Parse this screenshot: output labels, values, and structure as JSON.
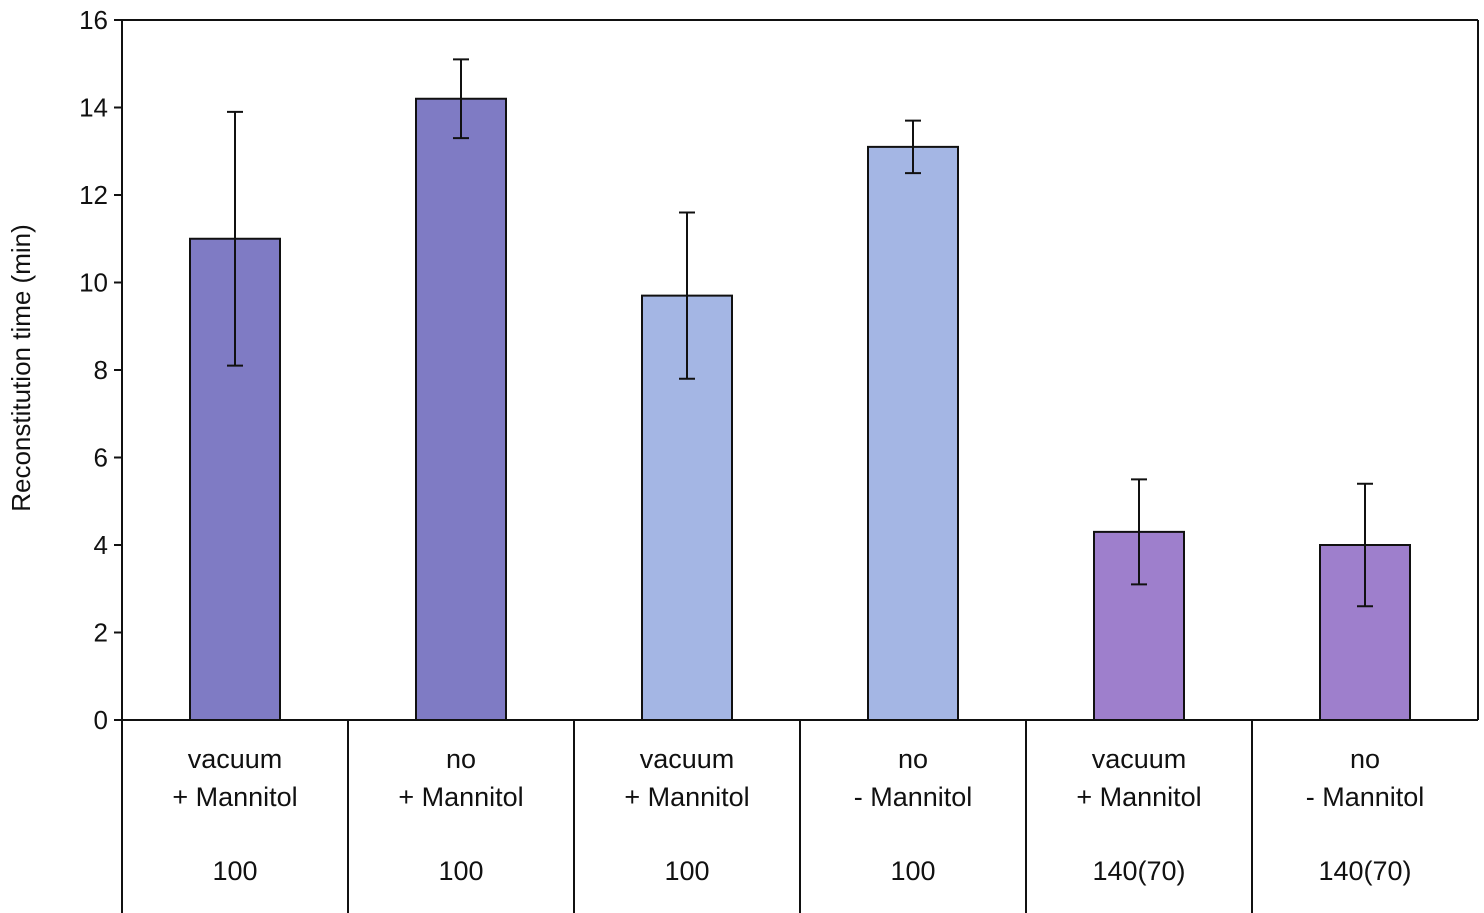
{
  "chart_data": {
    "type": "bar",
    "title": "",
    "ylabel": "Reconstitution time (min)",
    "ylim": [
      0,
      16
    ],
    "yticks": [
      0,
      2,
      4,
      6,
      8,
      10,
      12,
      14,
      16
    ],
    "grid": false,
    "legend": "none",
    "categories": [
      {
        "line1": "vacuum",
        "line2": "+ Mannitol",
        "group": "100"
      },
      {
        "line1": "no",
        "line2": "+ Mannitol",
        "group": "100"
      },
      {
        "line1": "vacuum",
        "line2": "+ Mannitol",
        "group": "100"
      },
      {
        "line1": "no",
        "line2": "- Mannitol",
        "group": "100"
      },
      {
        "line1": "vacuum",
        "line2": "+ Mannitol",
        "group": "140(70)"
      },
      {
        "line1": "no",
        "line2": "- Mannitol",
        "group": "140(70)"
      }
    ],
    "values": [
      11.0,
      14.2,
      9.7,
      13.1,
      4.3,
      4.0
    ],
    "errors": [
      2.9,
      0.9,
      1.9,
      0.6,
      1.2,
      1.4
    ],
    "colors": [
      "#7f7bc4",
      "#7f7bc4",
      "#a4b6e4",
      "#a4b6e4",
      "#9e7fcc",
      "#9e7fcc"
    ]
  }
}
